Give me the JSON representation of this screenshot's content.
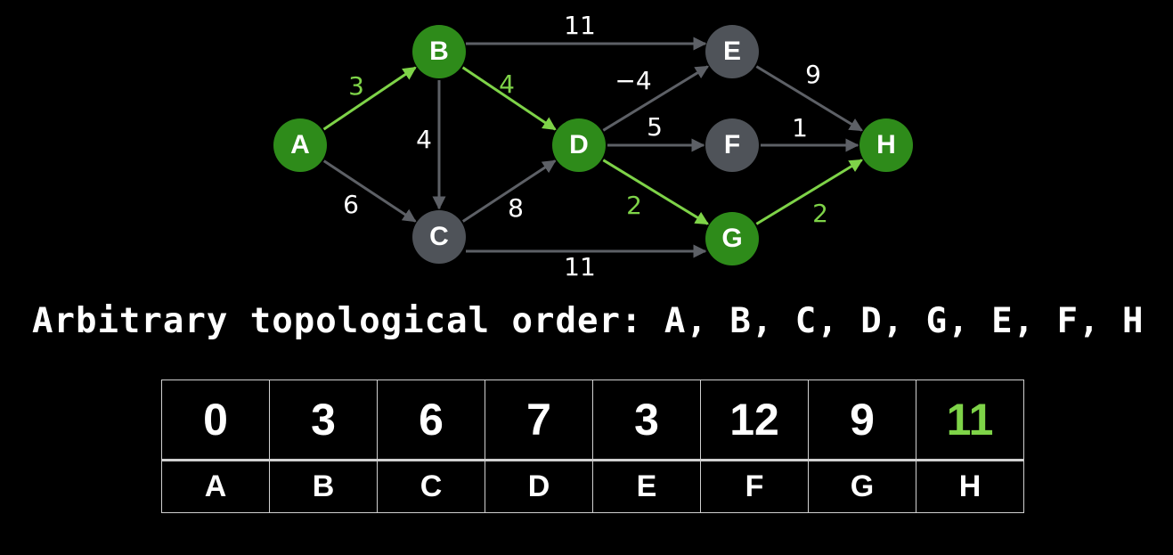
{
  "colors": {
    "background": "#000000",
    "node_green": "#2e8b1a",
    "node_gray": "#4f5359",
    "edge_green": "#7ed348",
    "edge_gray": "#5d6066",
    "label_white": "#ffffff",
    "label_green": "#7ed348",
    "table_border": "#d0d0d0"
  },
  "graph": {
    "nodes": [
      {
        "id": "A",
        "label": "A",
        "highlighted": true
      },
      {
        "id": "B",
        "label": "B",
        "highlighted": true
      },
      {
        "id": "C",
        "label": "C",
        "highlighted": false
      },
      {
        "id": "D",
        "label": "D",
        "highlighted": true
      },
      {
        "id": "E",
        "label": "E",
        "highlighted": false
      },
      {
        "id": "F",
        "label": "F",
        "highlighted": false
      },
      {
        "id": "G",
        "label": "G",
        "highlighted": true
      },
      {
        "id": "H",
        "label": "H",
        "highlighted": true
      }
    ],
    "edges": [
      {
        "from": "A",
        "to": "B",
        "weight": "3",
        "highlighted": true
      },
      {
        "from": "A",
        "to": "C",
        "weight": "6",
        "highlighted": false
      },
      {
        "from": "B",
        "to": "C",
        "weight": "4",
        "highlighted": false
      },
      {
        "from": "B",
        "to": "D",
        "weight": "4",
        "highlighted": true
      },
      {
        "from": "B",
        "to": "E",
        "weight": "11",
        "highlighted": false
      },
      {
        "from": "C",
        "to": "D",
        "weight": "8",
        "highlighted": false
      },
      {
        "from": "C",
        "to": "G",
        "weight": "11",
        "highlighted": false
      },
      {
        "from": "D",
        "to": "E",
        "weight": "−4",
        "highlighted": false
      },
      {
        "from": "D",
        "to": "F",
        "weight": "5",
        "highlighted": false
      },
      {
        "from": "D",
        "to": "G",
        "weight": "2",
        "highlighted": true
      },
      {
        "from": "E",
        "to": "H",
        "weight": "9",
        "highlighted": false
      },
      {
        "from": "F",
        "to": "H",
        "weight": "1",
        "highlighted": false
      },
      {
        "from": "G",
        "to": "H",
        "weight": "2",
        "highlighted": true
      }
    ]
  },
  "caption": "Arbitrary topological order: A, B, C, D, G, E, F, H",
  "table": {
    "distances": [
      {
        "vertex": "A",
        "value": "0",
        "highlighted": false
      },
      {
        "vertex": "B",
        "value": "3",
        "highlighted": false
      },
      {
        "vertex": "C",
        "value": "6",
        "highlighted": false
      },
      {
        "vertex": "D",
        "value": "7",
        "highlighted": false
      },
      {
        "vertex": "E",
        "value": "3",
        "highlighted": false
      },
      {
        "vertex": "F",
        "value": "12",
        "highlighted": false
      },
      {
        "vertex": "G",
        "value": "9",
        "highlighted": false
      },
      {
        "vertex": "H",
        "value": "11",
        "highlighted": true
      }
    ]
  }
}
